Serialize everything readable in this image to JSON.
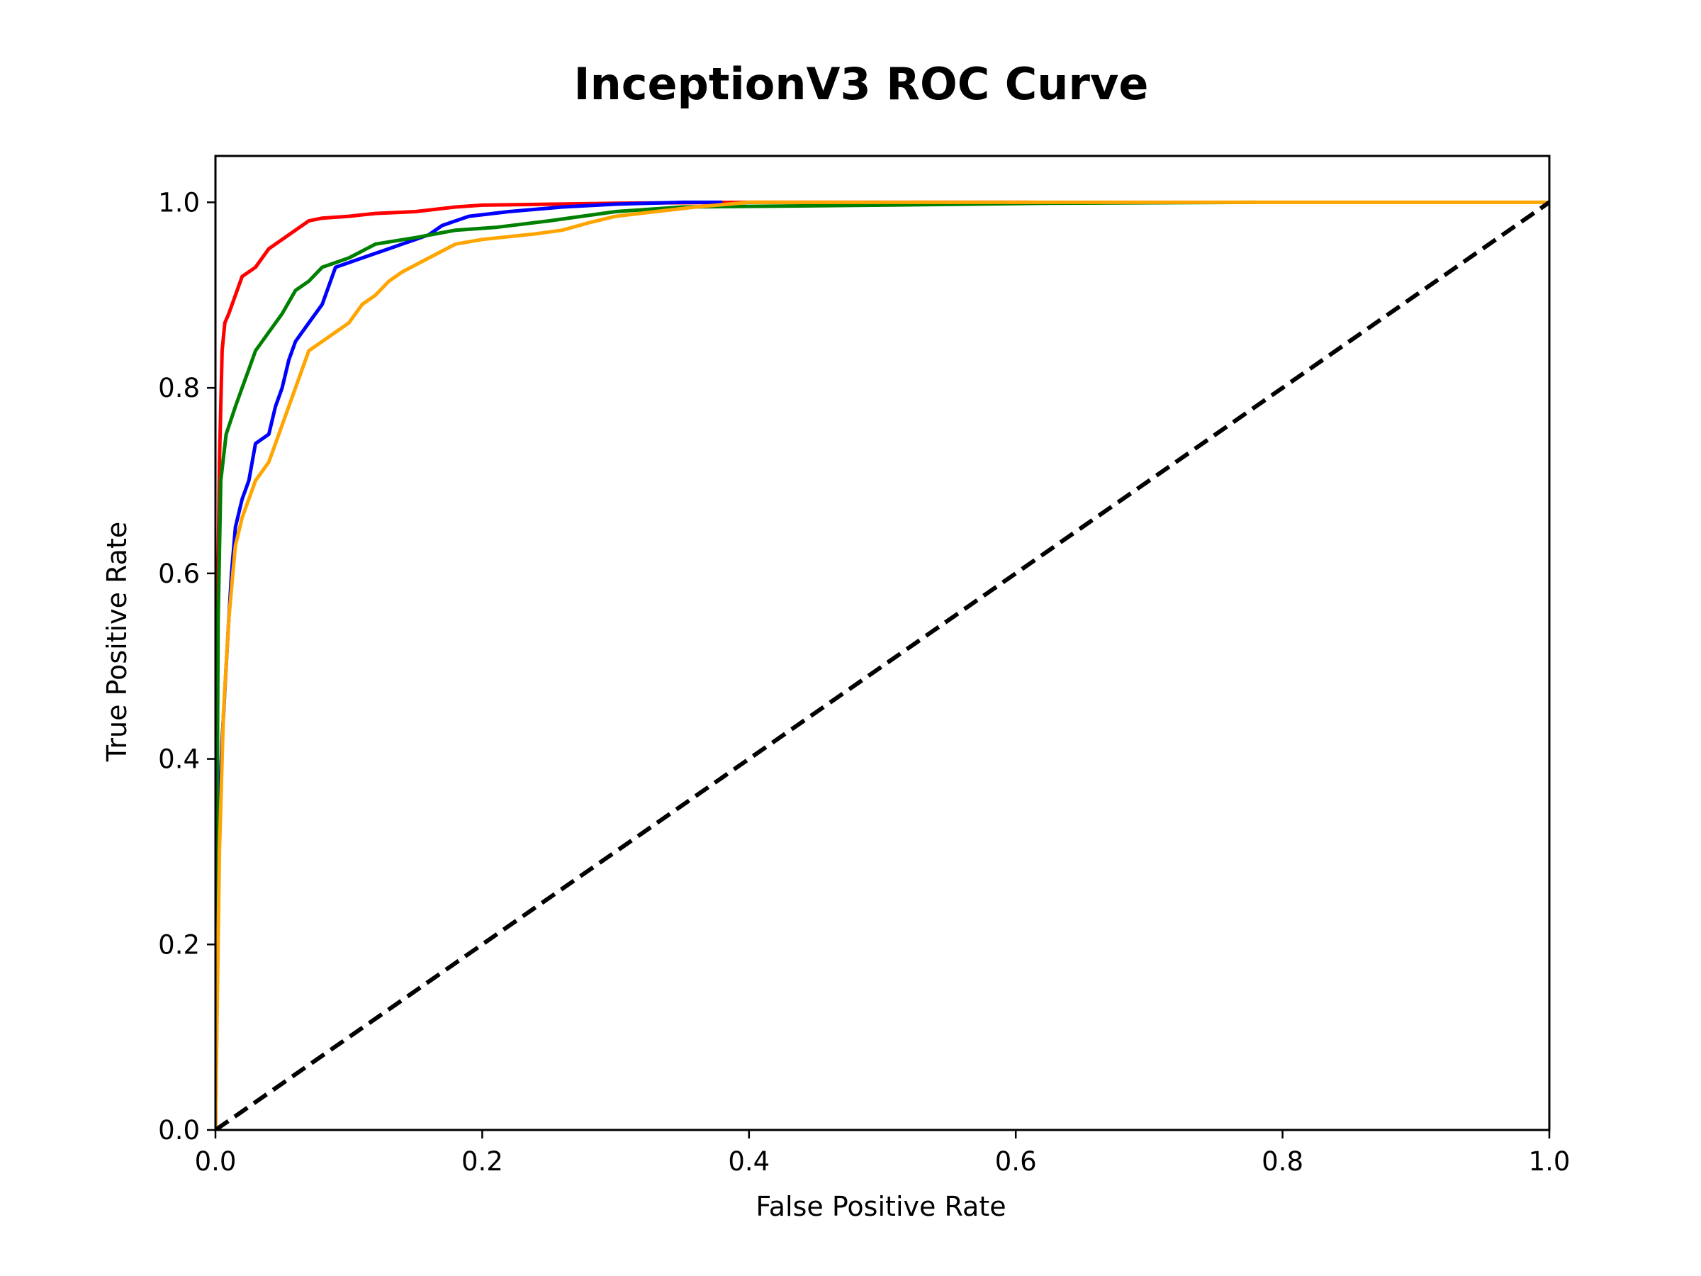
{
  "chart_data": {
    "type": "line",
    "title": "InceptionV3 ROC Curve",
    "xlabel": "False Positive Rate",
    "ylabel": "True Positive Rate",
    "xlim": [
      0.0,
      1.0
    ],
    "ylim": [
      0.0,
      1.05
    ],
    "grid": false,
    "x_ticks": [
      "0.0",
      "0.2",
      "0.4",
      "0.6",
      "0.8",
      "1.0"
    ],
    "y_ticks": [
      "0.0",
      "0.2",
      "0.4",
      "0.6",
      "0.8",
      "1.0"
    ],
    "series": [
      {
        "color": "#ff0000",
        "points": [
          [
            0,
            0
          ],
          [
            0.001,
            0.35
          ],
          [
            0.002,
            0.6
          ],
          [
            0.003,
            0.72
          ],
          [
            0.004,
            0.78
          ],
          [
            0.005,
            0.84
          ],
          [
            0.007,
            0.87
          ],
          [
            0.01,
            0.88
          ],
          [
            0.015,
            0.9
          ],
          [
            0.02,
            0.92
          ],
          [
            0.03,
            0.93
          ],
          [
            0.035,
            0.94
          ],
          [
            0.04,
            0.95
          ],
          [
            0.05,
            0.96
          ],
          [
            0.06,
            0.97
          ],
          [
            0.07,
            0.98
          ],
          [
            0.08,
            0.983
          ],
          [
            0.1,
            0.985
          ],
          [
            0.12,
            0.988
          ],
          [
            0.15,
            0.99
          ],
          [
            0.18,
            0.995
          ],
          [
            0.2,
            0.997
          ],
          [
            0.3,
            0.999
          ],
          [
            0.4,
            1.0
          ],
          [
            0.61,
            1.0
          ]
        ]
      },
      {
        "color": "#0000ff",
        "points": [
          [
            0,
            0
          ],
          [
            0.003,
            0.35
          ],
          [
            0.005,
            0.42
          ],
          [
            0.008,
            0.5
          ],
          [
            0.01,
            0.55
          ],
          [
            0.012,
            0.6
          ],
          [
            0.015,
            0.65
          ],
          [
            0.02,
            0.68
          ],
          [
            0.025,
            0.7
          ],
          [
            0.03,
            0.74
          ],
          [
            0.04,
            0.75
          ],
          [
            0.045,
            0.78
          ],
          [
            0.05,
            0.8
          ],
          [
            0.055,
            0.83
          ],
          [
            0.06,
            0.85
          ],
          [
            0.065,
            0.86
          ],
          [
            0.07,
            0.87
          ],
          [
            0.075,
            0.88
          ],
          [
            0.08,
            0.89
          ],
          [
            0.085,
            0.91
          ],
          [
            0.09,
            0.93
          ],
          [
            0.1,
            0.935
          ],
          [
            0.11,
            0.94
          ],
          [
            0.12,
            0.945
          ],
          [
            0.13,
            0.95
          ],
          [
            0.14,
            0.955
          ],
          [
            0.15,
            0.96
          ],
          [
            0.16,
            0.965
          ],
          [
            0.17,
            0.975
          ],
          [
            0.19,
            0.985
          ],
          [
            0.22,
            0.99
          ],
          [
            0.26,
            0.995
          ],
          [
            0.3,
            0.998
          ],
          [
            0.35,
            1.0
          ],
          [
            0.38,
            1.0
          ]
        ]
      },
      {
        "color": "#008000",
        "points": [
          [
            0,
            0
          ],
          [
            0.002,
            0.55
          ],
          [
            0.004,
            0.7
          ],
          [
            0.008,
            0.75
          ],
          [
            0.015,
            0.78
          ],
          [
            0.02,
            0.8
          ],
          [
            0.025,
            0.82
          ],
          [
            0.03,
            0.84
          ],
          [
            0.04,
            0.86
          ],
          [
            0.05,
            0.88
          ],
          [
            0.06,
            0.905
          ],
          [
            0.07,
            0.915
          ],
          [
            0.08,
            0.93
          ],
          [
            0.1,
            0.94
          ],
          [
            0.12,
            0.955
          ],
          [
            0.15,
            0.962
          ],
          [
            0.18,
            0.97
          ],
          [
            0.21,
            0.973
          ],
          [
            0.25,
            0.98
          ],
          [
            0.3,
            0.99
          ],
          [
            0.35,
            0.995
          ],
          [
            0.5,
            0.997
          ],
          [
            0.62,
            0.999
          ],
          [
            0.78,
            1.0
          ]
        ]
      },
      {
        "color": "#ffa500",
        "points": [
          [
            0,
            0
          ],
          [
            0.003,
            0.3
          ],
          [
            0.006,
            0.45
          ],
          [
            0.01,
            0.55
          ],
          [
            0.013,
            0.6
          ],
          [
            0.015,
            0.63
          ],
          [
            0.02,
            0.66
          ],
          [
            0.03,
            0.7
          ],
          [
            0.04,
            0.72
          ],
          [
            0.045,
            0.74
          ],
          [
            0.05,
            0.76
          ],
          [
            0.055,
            0.78
          ],
          [
            0.06,
            0.8
          ],
          [
            0.065,
            0.82
          ],
          [
            0.07,
            0.84
          ],
          [
            0.08,
            0.85
          ],
          [
            0.09,
            0.86
          ],
          [
            0.1,
            0.87
          ],
          [
            0.11,
            0.89
          ],
          [
            0.12,
            0.9
          ],
          [
            0.13,
            0.915
          ],
          [
            0.14,
            0.925
          ],
          [
            0.16,
            0.94
          ],
          [
            0.18,
            0.955
          ],
          [
            0.2,
            0.96
          ],
          [
            0.24,
            0.966
          ],
          [
            0.26,
            0.97
          ],
          [
            0.28,
            0.978
          ],
          [
            0.3,
            0.985
          ],
          [
            0.33,
            0.99
          ],
          [
            0.36,
            0.995
          ],
          [
            0.4,
            1.0
          ],
          [
            1.0,
            1.0
          ]
        ]
      },
      {
        "color": "#000000",
        "dashed": true,
        "points": [
          [
            0,
            0
          ],
          [
            1,
            1
          ]
        ]
      }
    ]
  }
}
